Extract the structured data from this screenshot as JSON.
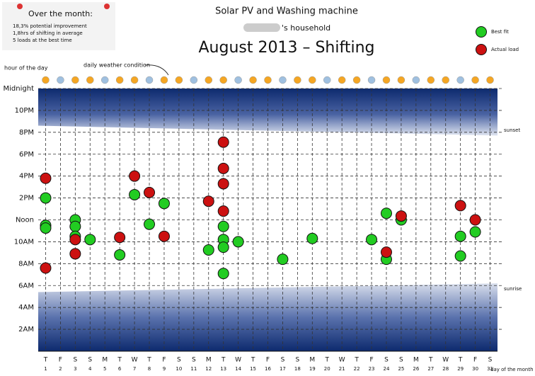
{
  "chart_data": {
    "type": "scatter",
    "title": "Solar PV and Washing machine",
    "household": "'s household",
    "subtitle": "August 2013 – Shifting",
    "summary_title": "Over the month:",
    "summary_lines": [
      "18,3% potential improvement",
      "1,8hrs of shifting in average",
      "5 loads at the best time"
    ],
    "y_axis_note": "hour of the day",
    "weather_note": "daily weather condition",
    "sunset_label": "sunset",
    "sunrise_label": "sunrise",
    "x_axis_note": "day of the month",
    "sunset": [
      20.6,
      19.7
    ],
    "sunrise": [
      5.4,
      6.2
    ],
    "xlim": [
      0.5,
      31.5
    ],
    "ylim": [
      0,
      24
    ],
    "xticks": [
      1,
      2,
      3,
      4,
      5,
      6,
      7,
      8,
      9,
      10,
      11,
      12,
      13,
      14,
      15,
      16,
      17,
      18,
      19,
      20,
      21,
      22,
      23,
      24,
      25,
      26,
      27,
      28,
      29,
      30,
      31
    ],
    "weekdays": [
      "T",
      "F",
      "S",
      "S",
      "M",
      "T",
      "W",
      "T",
      "F",
      "S",
      "S",
      "M",
      "T",
      "W",
      "T",
      "F",
      "S",
      "S",
      "M",
      "T",
      "W",
      "T",
      "F",
      "S",
      "S",
      "M",
      "T",
      "W",
      "T",
      "F",
      "S"
    ],
    "weekend_color": "#d2691e",
    "yticks": [
      {
        "value": 2,
        "label": "2AM"
      },
      {
        "value": 4,
        "label": "4AM"
      },
      {
        "value": 6,
        "label": "6AM"
      },
      {
        "value": 8,
        "label": "8AM"
      },
      {
        "value": 10,
        "label": "10AM"
      },
      {
        "value": 12,
        "label": "Noon"
      },
      {
        "value": 14,
        "label": "2PM"
      },
      {
        "value": 16,
        "label": "4PM"
      },
      {
        "value": 18,
        "label": "6PM"
      },
      {
        "value": 20,
        "label": "8PM"
      },
      {
        "value": 22,
        "label": "10PM"
      },
      {
        "value": 24,
        "label": "Midnight"
      }
    ],
    "grid": true,
    "legend": "top-right",
    "series": [
      {
        "name": "Best fit",
        "color": "#22cc22",
        "x": [
          1,
          1,
          1,
          3,
          3,
          3,
          4,
          6,
          7,
          8,
          9,
          12,
          13,
          13,
          13,
          13,
          14,
          17,
          19,
          23,
          24,
          24,
          25,
          29,
          29,
          30
        ],
        "values": [
          14.0,
          11.5,
          11.25,
          12.0,
          11.4,
          10.5,
          10.2,
          8.8,
          14.3,
          11.6,
          13.5,
          9.25,
          11.4,
          10.2,
          9.5,
          7.1,
          10.0,
          8.4,
          10.3,
          10.2,
          12.6,
          8.4,
          12.0,
          10.5,
          8.7,
          10.9
        ]
      },
      {
        "name": "Actual load",
        "color": "#cc1111",
        "x": [
          1,
          1,
          3,
          3,
          6,
          7,
          8,
          9,
          12,
          13,
          13,
          13,
          13,
          24,
          25,
          29,
          30
        ],
        "values": [
          15.8,
          7.6,
          10.2,
          8.9,
          10.4,
          16.0,
          14.5,
          10.5,
          13.7,
          19.1,
          16.7,
          15.3,
          12.8,
          9.05,
          12.35,
          13.3,
          12.0
        ]
      }
    ]
  }
}
